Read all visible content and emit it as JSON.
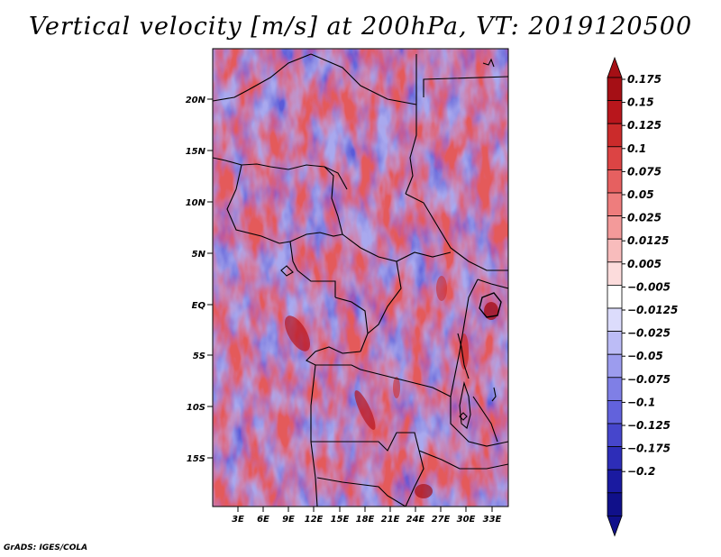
{
  "title": "Vertical velocity [m/s] at 200hPa, VT: 2019120500",
  "credit": "GrADS: IGES/COLA",
  "map": {
    "lat_labels": [
      "20N",
      "15N",
      "10N",
      "5N",
      "EQ",
      "5S",
      "10S",
      "15S"
    ],
    "lon_labels": [
      "3E",
      "6E",
      "9E",
      "12E",
      "15E",
      "18E",
      "21E",
      "24E",
      "27E",
      "30E",
      "33E"
    ]
  },
  "colorbar": {
    "levels": [
      "0.175",
      "0.15",
      "0.125",
      "0.1",
      "0.075",
      "0.05",
      "0.025",
      "0.0125",
      "0.005",
      "−0.005",
      "−0.0125",
      "−0.025",
      "−0.05",
      "−0.075",
      "−0.1",
      "−0.125",
      "−0.175",
      "−0.2"
    ],
    "colors": [
      "#a50f15",
      "#b8161c",
      "#cb2b2b",
      "#dc4444",
      "#e66060",
      "#ee7d7d",
      "#f39a9a",
      "#f8bcbc",
      "#fcdcdc",
      "#ffffff",
      "#dcdcfc",
      "#bcbcf6",
      "#9c9cee",
      "#7f7fe6",
      "#6262dc",
      "#4646cc",
      "#2d2db8",
      "#1a1aa0",
      "#10108a"
    ],
    "top_color": "#a50f15",
    "bottom_color": "#10108a"
  }
}
